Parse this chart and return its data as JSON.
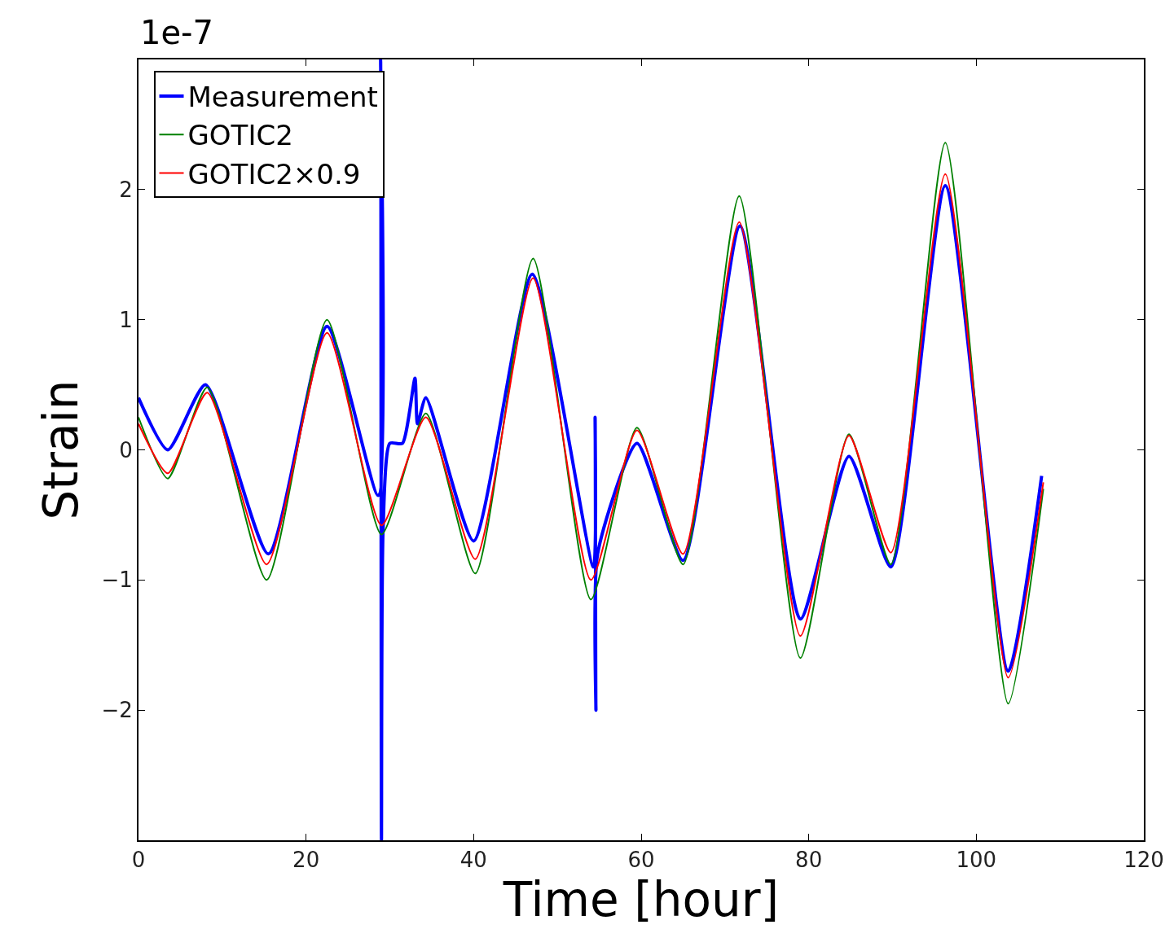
{
  "chart_data": {
    "type": "line",
    "xlabel": "Time [hour]",
    "ylabel": "Strain",
    "annotations": [
      "1e-7"
    ],
    "xlim": [
      0,
      120
    ],
    "xticks": [
      0,
      20,
      40,
      60,
      80,
      100,
      120
    ],
    "ylim": [
      -3,
      3
    ],
    "yticks": [
      {
        "value": -3,
        "label": null
      },
      -2,
      -1,
      0,
      1,
      2,
      {
        "value": 3,
        "label": null
      }
    ],
    "legend": "top left",
    "marker": "none",
    "line_style": "solid",
    "series": [
      {
        "name": "Measurement",
        "color": "#0000ff",
        "x": [
          0,
          3.5,
          8,
          15.5,
          22.5,
          28.6,
          28.9,
          29.0,
          29.2,
          30.0,
          31.5,
          33.0,
          33.3,
          34.3,
          40,
          47,
          54.3,
          54.5,
          54.6,
          54.8,
          59.5,
          65,
          71.8,
          79,
          84.8,
          89.8,
          96.3,
          103.8,
          107.8
        ],
        "values": [
          0.4,
          0.0,
          0.5,
          -0.8,
          0.95,
          -0.35,
          3.0,
          -3.0,
          -0.6,
          0.05,
          0.05,
          0.55,
          0.2,
          0.4,
          -0.7,
          1.35,
          -0.9,
          0.25,
          -2.0,
          -0.8,
          0.05,
          -0.85,
          1.72,
          -1.3,
          -0.05,
          -0.9,
          2.03,
          -1.7,
          -0.2
        ]
      },
      {
        "name": "GOTIC2",
        "color": "#008000",
        "x": [
          0,
          3.5,
          8.2,
          15.3,
          22.5,
          29,
          34.3,
          40.2,
          47.1,
          54,
          59.5,
          65,
          71.7,
          79,
          84.8,
          89.8,
          96.3,
          103.8,
          108
        ],
        "values": [
          0.25,
          -0.22,
          0.48,
          -1.0,
          1.0,
          -0.65,
          0.28,
          -0.95,
          1.47,
          -1.15,
          0.17,
          -0.88,
          1.95,
          -1.6,
          0.12,
          -0.88,
          2.36,
          -1.95,
          -0.3
        ]
      },
      {
        "name": "GOTIC2×0.9",
        "color": "#ff0000",
        "x": [
          0,
          3.5,
          8.2,
          15.3,
          22.5,
          29,
          34.3,
          40.2,
          47.1,
          54,
          59.5,
          65,
          71.7,
          79,
          84.8,
          89.8,
          96.3,
          103.8,
          108
        ],
        "values": [
          0.2,
          -0.18,
          0.44,
          -0.88,
          0.9,
          -0.58,
          0.25,
          -0.84,
          1.32,
          -1.0,
          0.15,
          -0.8,
          1.75,
          -1.43,
          0.11,
          -0.79,
          2.12,
          -1.75,
          -0.25
        ]
      }
    ]
  }
}
